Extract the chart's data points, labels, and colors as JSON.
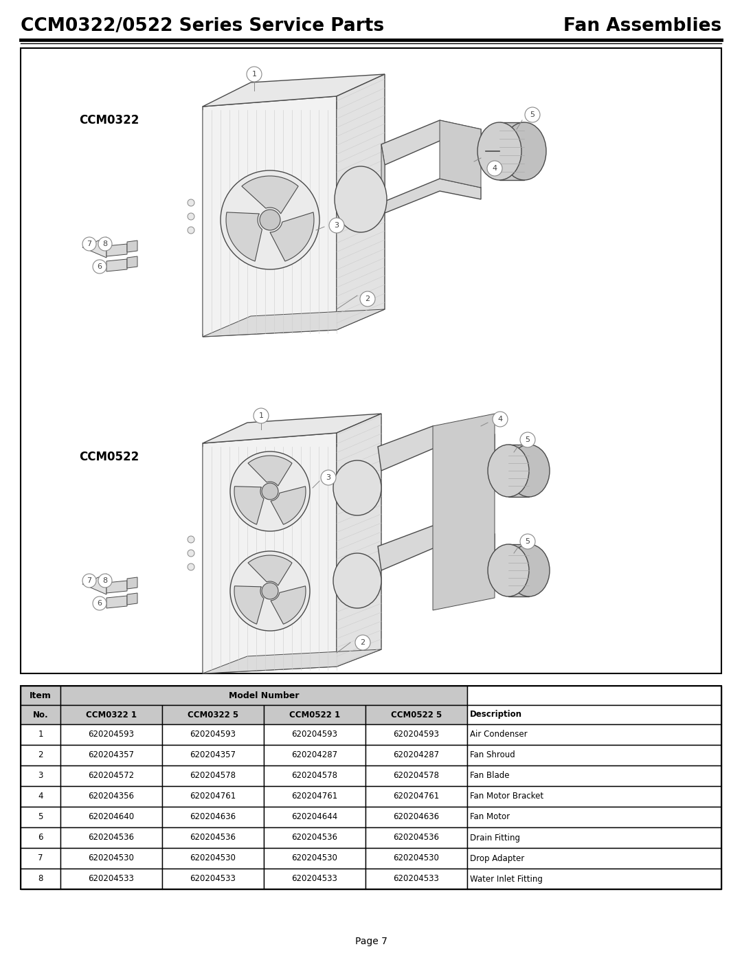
{
  "title_left": "CCM0322/0522 Series Service Parts",
  "title_right": "Fan Assemblies",
  "page_label": "Page 7",
  "bg_color": "#ffffff",
  "header_bg": "#ffffff",
  "label_ccm0322": "CCM0322",
  "label_ccm0522": "CCM0522",
  "table_headers1": [
    "Item",
    "Model Number",
    ""
  ],
  "table_headers2": [
    "No.",
    "CCM0322 1",
    "CCM0322 5",
    "CCM0522 1",
    "CCM0522 5",
    "Description"
  ],
  "table_rows": [
    [
      "1",
      "620204593",
      "620204593",
      "620204593",
      "620204593",
      "Air Condenser"
    ],
    [
      "2",
      "620204357",
      "620204357",
      "620204287",
      "620204287",
      "Fan Shroud"
    ],
    [
      "3",
      "620204572",
      "620204578",
      "620204578",
      "620204578",
      "Fan Blade"
    ],
    [
      "4",
      "620204356",
      "620204761",
      "620204761",
      "620204761",
      "Fan Motor Bracket"
    ],
    [
      "5",
      "620204640",
      "620204636",
      "620204644",
      "620204636",
      "Fan Motor"
    ],
    [
      "6",
      "620204536",
      "620204536",
      "620204536",
      "620204536",
      "Drain Fitting"
    ],
    [
      "7",
      "620204530",
      "620204530",
      "620204530",
      "620204530",
      "Drop Adapter"
    ],
    [
      "8",
      "620204533",
      "620204533",
      "620204533",
      "620204533",
      "Water Inlet Fitting"
    ]
  ]
}
